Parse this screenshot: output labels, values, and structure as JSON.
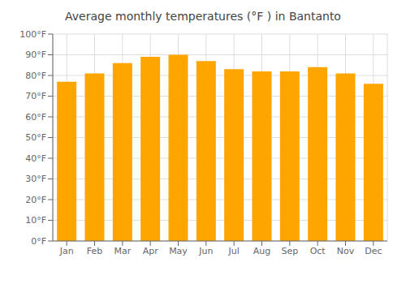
{
  "chart_data": {
    "type": "bar",
    "title": "Average monthly temperatures (°F ) in Bantanto",
    "categories": [
      "Jan",
      "Feb",
      "Mar",
      "Apr",
      "May",
      "Jun",
      "Jul",
      "Aug",
      "Sep",
      "Oct",
      "Nov",
      "Dec"
    ],
    "values": [
      77,
      81,
      86,
      89,
      90,
      87,
      83,
      82,
      82,
      84,
      81,
      76
    ],
    "color": "#FFA500",
    "ylim": [
      0,
      100
    ],
    "yticks": [
      {
        "value": 0,
        "label": "0°F"
      },
      {
        "value": 10,
        "label": "10°F"
      },
      {
        "value": 20,
        "label": "20°F"
      },
      {
        "value": 30,
        "label": "30°F"
      },
      {
        "value": 40,
        "label": "40°F"
      },
      {
        "value": 50,
        "label": "50°F"
      },
      {
        "value": 60,
        "label": "60°F"
      },
      {
        "value": 70,
        "label": "70°F"
      },
      {
        "value": 80,
        "label": "80°F"
      },
      {
        "value": 90,
        "label": "90°F"
      },
      {
        "value": 100,
        "label": "100°F"
      }
    ],
    "grid": true
  }
}
